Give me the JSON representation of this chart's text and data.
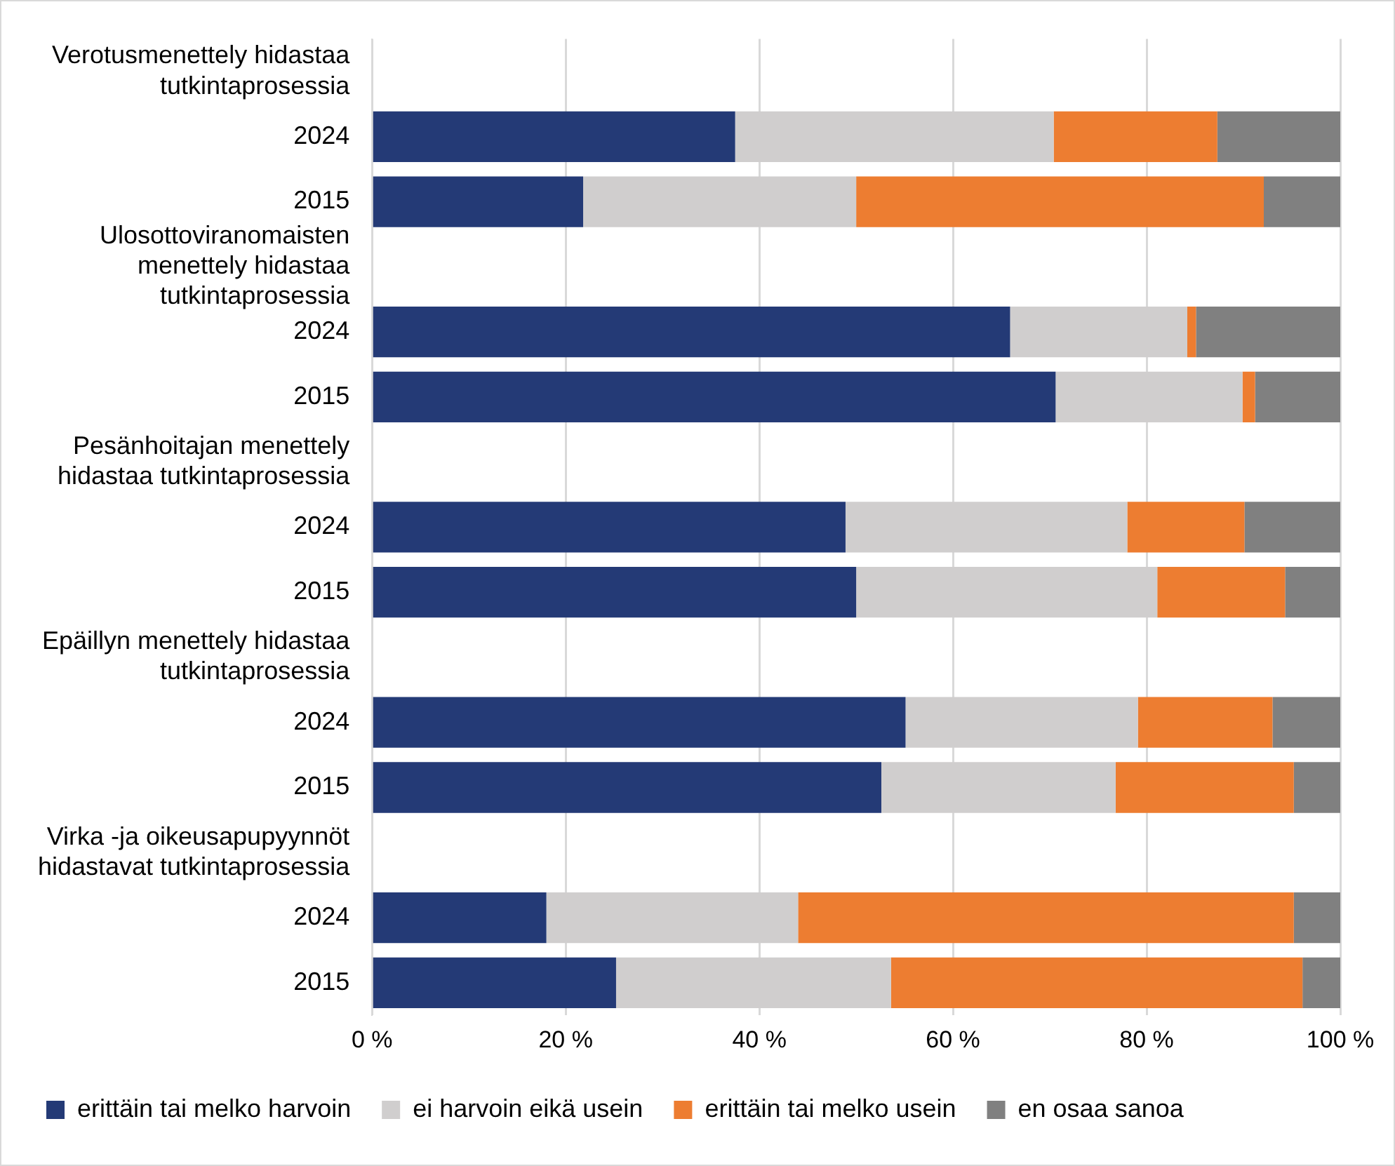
{
  "chart_data": {
    "type": "bar",
    "orientation": "horizontal",
    "stacked": true,
    "categories": [
      "Verotusmenettely hidastaa tutkintaprosessia",
      "2024",
      "2015",
      "Ulosottoviranomaisten menettely hidastaa tutkintaprosessia",
      "2024",
      "2015",
      "Pesänhoitajan menettely hidastaa tutkintaprosessia",
      "2024",
      "2015",
      "Epäillyn menettely hidastaa tutkintaprosessia",
      "2024",
      "2015",
      "Virka -ja oikeusapupyynnöt hidastavat tutkintaprosessia",
      "2024",
      "2015"
    ],
    "series": [
      {
        "name": "erittäin tai melko harvoin",
        "color": "#243a76",
        "values": [
          null,
          37.5,
          21.8,
          null,
          65.9,
          70.6,
          null,
          48.9,
          50.0,
          null,
          55.1,
          52.6,
          null,
          18.0,
          25.2
        ]
      },
      {
        "name": "ei harvoin eikä usein",
        "color": "#d0cece",
        "values": [
          null,
          32.9,
          28.2,
          null,
          18.3,
          19.3,
          null,
          29.1,
          31.1,
          null,
          24.0,
          24.2,
          null,
          26.0,
          28.4
        ]
      },
      {
        "name": "erittäin tai melko usein",
        "color": "#ed7d31",
        "values": [
          null,
          16.9,
          42.1,
          null,
          0.9,
          1.3,
          null,
          12.1,
          13.2,
          null,
          13.9,
          18.4,
          null,
          51.2,
          42.5
        ]
      },
      {
        "name": "en osaa sanoa",
        "color": "#808080",
        "values": [
          null,
          12.7,
          7.9,
          null,
          14.9,
          8.8,
          null,
          9.9,
          5.7,
          null,
          7.0,
          4.8,
          null,
          4.8,
          3.9
        ]
      }
    ],
    "xlim": [
      0,
      100
    ],
    "xticks": [
      {
        "value": 0,
        "label": "0 %"
      },
      {
        "value": 20,
        "label": "20 %"
      },
      {
        "value": 40,
        "label": "40 %"
      },
      {
        "value": 60,
        "label": "60 %"
      },
      {
        "value": 80,
        "label": "80 %"
      },
      {
        "value": 100,
        "label": "100 %"
      }
    ],
    "grid": "x",
    "legend": "bottom"
  }
}
